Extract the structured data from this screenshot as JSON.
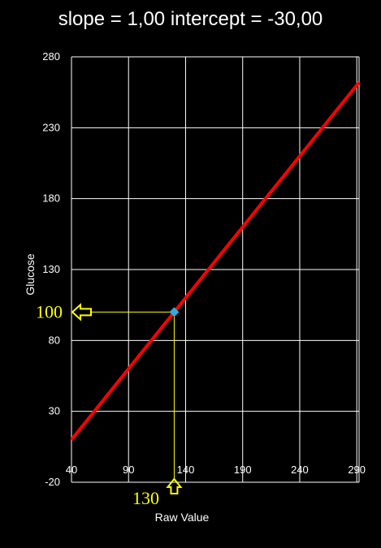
{
  "chart_data": {
    "type": "line",
    "title": "slope = 1,00 intercept = -30,00",
    "xlabel": "Raw Value",
    "ylabel": "Glucose",
    "xlim": [
      40,
      292
    ],
    "ylim": [
      -20,
      280
    ],
    "x_ticks": [
      40,
      90,
      140,
      190,
      240,
      290
    ],
    "y_ticks": [
      -20,
      30,
      80,
      130,
      180,
      230,
      280
    ],
    "grid": true,
    "series": [
      {
        "x": [
          40,
          292
        ],
        "y": [
          10,
          262
        ],
        "color": "#ff0000"
      }
    ],
    "highlight_point": {
      "x": 130,
      "y": 100,
      "color": "#33aadd"
    },
    "annotations": {
      "x_value": "130",
      "y_value": "100",
      "color": "#ffff00"
    }
  },
  "colors": {
    "background": "#000000",
    "gridline": "#ffffff",
    "text": "#ffffff",
    "line": "#ff0000",
    "marker": "#33aadd",
    "annotation": "#ffff00"
  }
}
